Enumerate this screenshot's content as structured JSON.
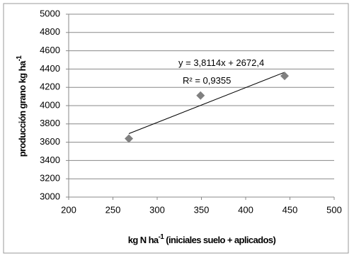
{
  "chart_data": {
    "type": "scatter",
    "x": [
      268,
      349,
      444
    ],
    "values": [
      3640,
      4110,
      4325
    ],
    "color": "#808080",
    "xlim": [
      200,
      500
    ],
    "xticks": [
      200,
      250,
      300,
      350,
      400,
      450,
      500
    ],
    "ylim": [
      3000,
      5000
    ],
    "yticks": [
      3000,
      3200,
      3400,
      3600,
      3800,
      4000,
      4200,
      4400,
      4600,
      4800,
      5000
    ],
    "grid": true,
    "xlabel": "kg N ha",
    "xlabel_sup": "-1",
    "xlabel_rest": "(iniciales suelo + aplicados)",
    "ylabel": "producción grano kg ha",
    "ylabel_sup": "-1",
    "trendline": {
      "slope": 3.8114,
      "intercept": 2672.4,
      "equation": "y = 3,8114x + 2672,4",
      "r_squared": "R² = 0,9355"
    }
  }
}
